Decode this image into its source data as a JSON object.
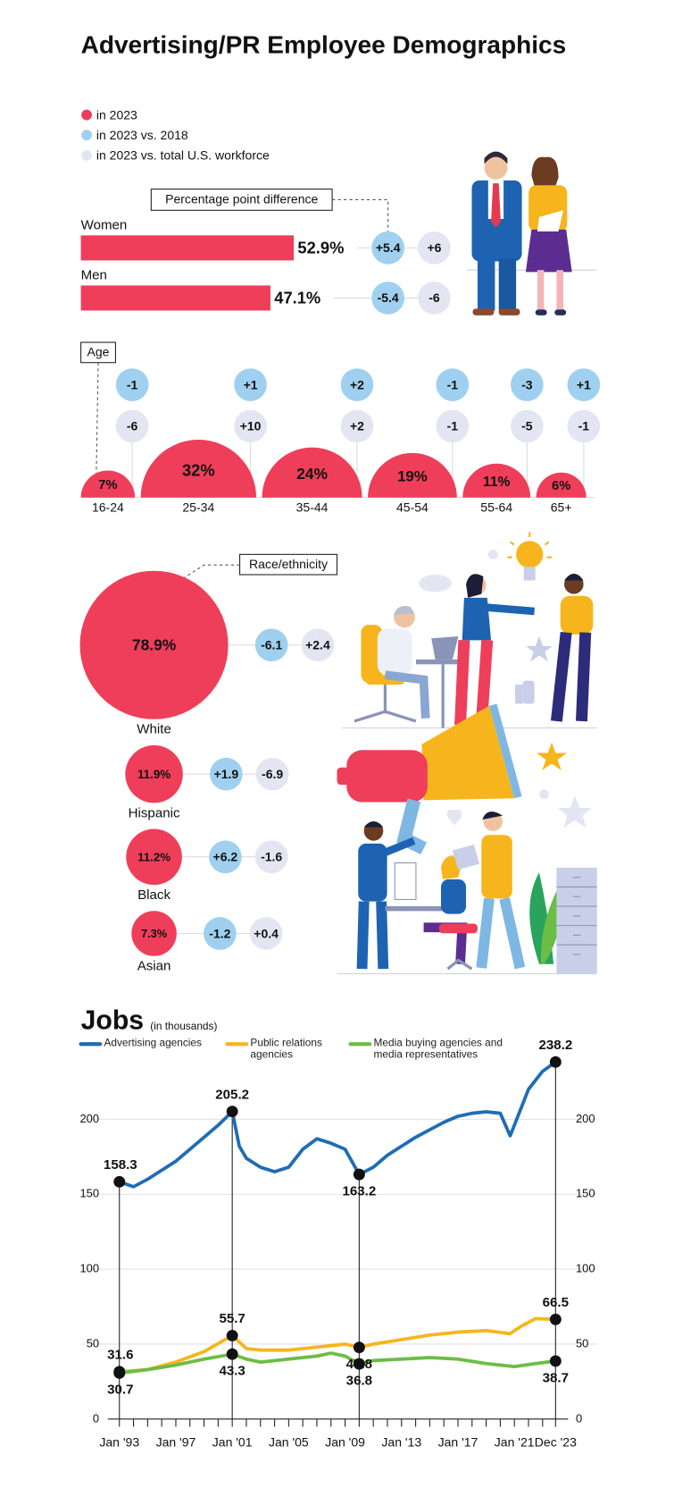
{
  "title": "Advertising/PR Employee Demographics",
  "chart_data": [
    {
      "type": "hbar",
      "annotation": "Percentage point difference",
      "categories": [
        "Women",
        "Men"
      ],
      "xlim": [
        0,
        100
      ],
      "series": [
        {
          "name": "in 2023",
          "color": "#ef3e5a",
          "values": [
            52.9,
            47.1
          ],
          "value_labels": [
            "52.9%",
            "47.1%"
          ]
        },
        {
          "name": "in 2023 vs. 2018",
          "color": "#9fd0ef",
          "values": [
            5.4,
            -5.4
          ],
          "value_labels": [
            "+5.4",
            "-5.4"
          ]
        },
        {
          "name": "in 2023 vs. total U.S. workforce",
          "color": "#e3e6f2",
          "values": [
            6,
            -6
          ],
          "value_labels": [
            "+6",
            "-6"
          ]
        }
      ]
    },
    {
      "type": "half-bubble",
      "title": "Age",
      "categories": [
        "16-24",
        "25-34",
        "35-44",
        "45-54",
        "55-64",
        "65+"
      ],
      "series": [
        {
          "color": "#ef3e5a",
          "values": [
            7,
            32,
            24,
            19,
            11,
            6
          ],
          "value_labels": [
            "7%",
            "32%",
            "24%",
            "19%",
            "11%",
            "6%"
          ]
        },
        {
          "color": "#9fd0ef",
          "values": [
            -1,
            1,
            2,
            -1,
            -3,
            1
          ],
          "value_labels": [
            "-1",
            "+1",
            "+2",
            "-1",
            "-3",
            "+1"
          ]
        },
        {
          "color": "#e3e6f2",
          "values": [
            -6,
            10,
            2,
            -1,
            -5,
            -1
          ],
          "value_labels": [
            "-6",
            "+10",
            "+2",
            "-1",
            "-5",
            "-1"
          ]
        }
      ]
    },
    {
      "type": "bubble",
      "title": "Race/ethnicity",
      "categories": [
        "White",
        "Hispanic",
        "Black",
        "Asian"
      ],
      "series": [
        {
          "color": "#ef3e5a",
          "values": [
            78.9,
            11.9,
            11.2,
            7.3
          ],
          "value_labels": [
            "78.9%",
            "11.9%",
            "11.2%",
            "7.3%"
          ]
        },
        {
          "color": "#9fd0ef",
          "values": [
            -6.1,
            1.9,
            6.2,
            -1.2
          ],
          "value_labels": [
            "-6.1",
            "+1.9",
            "+6.2",
            "-1.2"
          ]
        },
        {
          "color": "#e3e6f2",
          "values": [
            2.4,
            -6.9,
            -1.6,
            0.4
          ],
          "value_labels": [
            "+2.4",
            "-6.9",
            "-1.6",
            "+0.4"
          ]
        }
      ]
    },
    {
      "type": "line",
      "title": "Jobs",
      "subtitle": "(in thousands)",
      "xlim": [
        1993,
        2023.92
      ],
      "ylim": [
        0,
        240
      ],
      "grid": true,
      "yticks": [
        0,
        50,
        100,
        150,
        200
      ],
      "xticks": [
        {
          "value": 1993,
          "label": "Jan '93"
        },
        {
          "value": 1997,
          "label": "Jan '97"
        },
        {
          "value": 2001,
          "label": "Jan '01"
        },
        {
          "value": 2005,
          "label": "Jan '05"
        },
        {
          "value": 2009,
          "label": "Jan '09"
        },
        {
          "value": 2013,
          "label": "Jan '13"
        },
        {
          "value": 2017,
          "label": "Jan '17"
        },
        {
          "value": 2021,
          "label": "Jan '21"
        },
        {
          "value": 2023.92,
          "label": "Dec '23"
        }
      ],
      "xminorticks": [
        1994,
        1995,
        1996,
        1998,
        1999,
        2000,
        2002,
        2003,
        2004,
        2006,
        2007,
        2008,
        2010,
        2011,
        2012,
        2014,
        2015,
        2016,
        2018,
        2019,
        2020,
        2022,
        2023
      ],
      "series": [
        {
          "name": "Advertising agencies",
          "color": "#1f6db4",
          "x": [
            1993,
            1994,
            1995,
            1996,
            1997,
            1998,
            1999,
            2000,
            2001,
            2001.5,
            2002,
            2003,
            2004,
            2005,
            2006,
            2007,
            2008,
            2009,
            2010,
            2011,
            2012,
            2013,
            2014,
            2015,
            2016,
            2017,
            2018,
            2019,
            2020,
            2020.7,
            2021,
            2022,
            2023,
            2023.92
          ],
          "values": [
            158.3,
            155,
            160,
            166,
            172,
            180,
            188,
            196,
            205.2,
            182,
            174,
            168,
            165,
            168,
            180,
            187,
            184,
            180,
            163.2,
            168,
            176,
            182,
            188,
            193,
            198,
            202,
            204,
            205,
            204,
            189,
            196,
            220,
            232,
            238.2
          ],
          "points": [
            {
              "x": 1993,
              "value": 158.3
            },
            {
              "x": 2001,
              "value": 205.2
            },
            {
              "x": 2010,
              "value": 163.2
            },
            {
              "x": 2023.92,
              "value": 238.2
            }
          ]
        },
        {
          "name": "Public relations agencies",
          "color": "#f6b51c",
          "x": [
            1993,
            1995,
            1997,
            1999,
            2001,
            2002,
            2003,
            2005,
            2007,
            2009,
            2010,
            2011,
            2013,
            2015,
            2017,
            2019,
            2020.7,
            2021.5,
            2022.5,
            2023.92
          ],
          "values": [
            31.6,
            33,
            38,
            45,
            55.7,
            47,
            46,
            46,
            48,
            50,
            47.8,
            50,
            53,
            56,
            58,
            59,
            57,
            62,
            67,
            66.5
          ],
          "points": [
            {
              "x": 1993,
              "value": 31.6
            },
            {
              "x": 2001,
              "value": 55.7
            },
            {
              "x": 2010,
              "value": 47.8
            },
            {
              "x": 2023.92,
              "value": 66.5
            }
          ]
        },
        {
          "name": "Media buying agencies and media representatives",
          "color": "#6cbd45",
          "x": [
            1993,
            1995,
            1997,
            1999,
            2001,
            2002,
            2003,
            2005,
            2007,
            2008,
            2009,
            2010,
            2011,
            2013,
            2015,
            2017,
            2019,
            2021,
            2022.5,
            2023.92
          ],
          "values": [
            30.7,
            33,
            36,
            40,
            43.3,
            40,
            38,
            40,
            42,
            44,
            42,
            36.8,
            39,
            40,
            41,
            40,
            37,
            35,
            37,
            38.7
          ],
          "points": [
            {
              "x": 1993,
              "value": 30.7
            },
            {
              "x": 2001,
              "value": 43.3
            },
            {
              "x": 2010,
              "value": 36.8
            },
            {
              "x": 2023.92,
              "value": 38.7
            }
          ]
        }
      ]
    }
  ]
}
